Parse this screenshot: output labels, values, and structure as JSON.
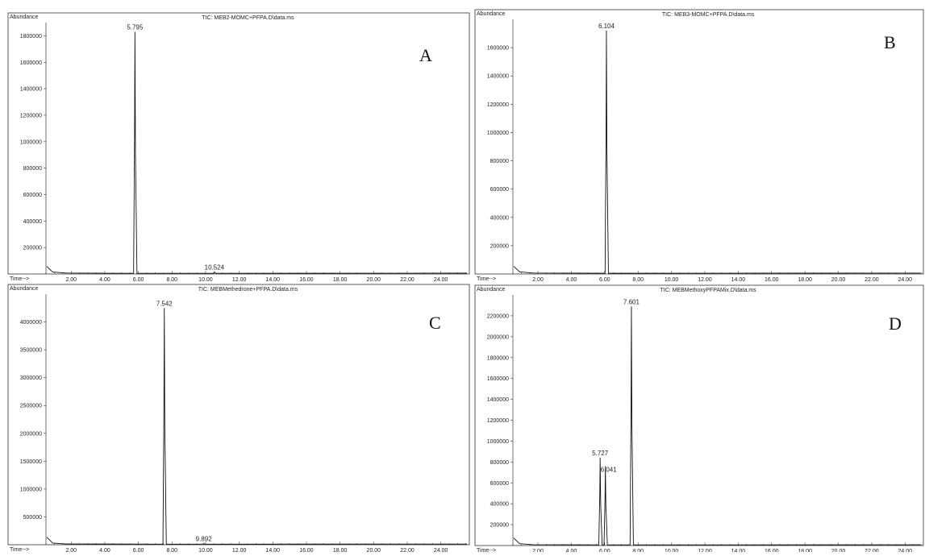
{
  "chart_data": [
    {
      "type": "line",
      "panel_letter": "A",
      "title": "TIC: MEB2-MOMC+PFPA.D\\data.ms",
      "ylabel": "Abundance",
      "xlabel": "Time-->",
      "xlim": [
        0.5,
        25.6
      ],
      "ylim": [
        0,
        1900000
      ],
      "x_ticks": [
        "2.00",
        "4.00",
        "6.00",
        "8.00",
        "10.00",
        "12.00",
        "14.00",
        "16.00",
        "18.00",
        "20.00",
        "22.00",
        "24.00"
      ],
      "y_ticks": [
        "200000",
        "400000",
        "600000",
        "800000",
        "1000000",
        "1200000",
        "1400000",
        "1600000",
        "1800000"
      ],
      "peaks": [
        {
          "label": "5.795",
          "x": 5.795,
          "y": 1830000
        },
        {
          "label": "10.524",
          "x": 10.524,
          "y": 15000
        }
      ],
      "baseline": 5000,
      "grid": false
    },
    {
      "type": "line",
      "panel_letter": "B",
      "title": "TIC: MEB3-MOMC+PFPA.D\\data.ms",
      "ylabel": "Abundance",
      "xlabel": "Time-->",
      "xlim": [
        0.5,
        25.0
      ],
      "ylim": [
        0,
        1800000
      ],
      "x_ticks": [
        "2.00",
        "4.00",
        "6.00",
        "8.00",
        "10.00",
        "12.00",
        "14.00",
        "16.00",
        "18.00",
        "20.00",
        "22.00",
        "24.00"
      ],
      "y_ticks": [
        "200000",
        "400000",
        "600000",
        "800000",
        "1000000",
        "1200000",
        "1400000",
        "1600000"
      ],
      "peaks": [
        {
          "label": "6.104",
          "x": 6.104,
          "y": 1720000
        }
      ],
      "baseline": 5000,
      "grid": false
    },
    {
      "type": "line",
      "panel_letter": "C",
      "title": "TIC: MEBMethedrone+PFPA.D\\data.ms",
      "ylabel": "Abundance",
      "xlabel": "Time-->",
      "xlim": [
        0.5,
        25.6
      ],
      "ylim": [
        0,
        4500000
      ],
      "x_ticks": [
        "2.00",
        "4.00",
        "6.00",
        "8.00",
        "10.00",
        "12.00",
        "14.00",
        "16.00",
        "18.00",
        "20.00",
        "22.00",
        "24.00"
      ],
      "y_ticks": [
        "500000",
        "1000000",
        "1500000",
        "2000000",
        "2500000",
        "3000000",
        "3500000",
        "4000000"
      ],
      "peaks": [
        {
          "label": "7.542",
          "x": 7.542,
          "y": 4250000
        },
        {
          "label": "9.892",
          "x": 9.892,
          "y": 25000
        }
      ],
      "baseline": 10000,
      "grid": false
    },
    {
      "type": "line",
      "panel_letter": "D",
      "title": "TIC: MEBMethoxyPFPAMix.D\\data.ms",
      "ylabel": "Abundance",
      "xlabel": "Time-->",
      "xlim": [
        0.5,
        25.0
      ],
      "ylim": [
        0,
        2400000
      ],
      "x_ticks": [
        "2.00",
        "4.00",
        "6.00",
        "8.00",
        "10.00",
        "12.00",
        "14.00",
        "16.00",
        "18.00",
        "20.00",
        "22.00",
        "24.00"
      ],
      "y_ticks": [
        "200000",
        "400000",
        "600000",
        "800000",
        "1000000",
        "1200000",
        "1400000",
        "1600000",
        "1800000",
        "2000000",
        "2200000"
      ],
      "peaks": [
        {
          "label": "5.727",
          "x": 5.727,
          "y": 840000
        },
        {
          "label": "6.041",
          "x": 6.041,
          "y": 760000
        },
        {
          "label": "7.601",
          "x": 7.601,
          "y": 2290000
        }
      ],
      "baseline": 6000,
      "grid": false
    }
  ]
}
